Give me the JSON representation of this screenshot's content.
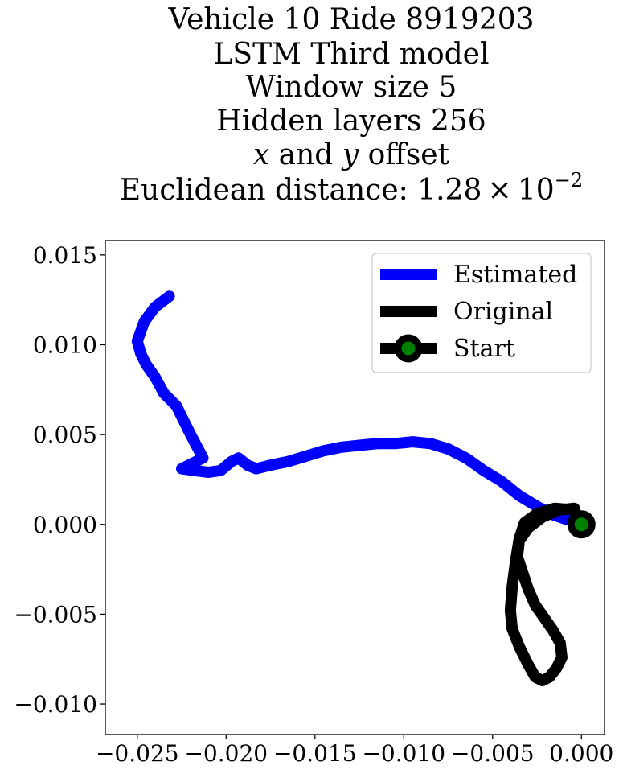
{
  "chart_data": {
    "type": "line",
    "title_lines": [
      "Vehicle 10 Ride 8919203",
      "LSTM Third model",
      "Window size 5",
      "Hidden layers 256",
      "x and y offset",
      "Euclidean distance: 1.28 × 10−2"
    ],
    "title": {
      "line5": {
        "x_var": "x",
        "mid": " and ",
        "y_var": "y",
        "tail": " offset"
      },
      "line6": {
        "prefix": "Euclidean distance: 1.28 × 10",
        "exponent": "−2"
      }
    },
    "xlim": [
      -0.0268,
      0.0013
    ],
    "ylim": [
      -0.0117,
      0.0158
    ],
    "xticks": [
      -0.025,
      -0.02,
      -0.015,
      -0.01,
      -0.005,
      0.0
    ],
    "xtick_labels": [
      "−0.025",
      "−0.020",
      "−0.015",
      "−0.010",
      "−0.005",
      "0.000"
    ],
    "yticks": [
      0.015,
      0.01,
      0.005,
      0.0,
      -0.005,
      -0.01
    ],
    "ytick_labels": [
      "0.015",
      "0.010",
      "0.005",
      "0.000",
      "−0.005",
      "−0.010"
    ],
    "grid": false,
    "legend_position": "top-right",
    "legend": [
      "Estimated",
      "Original",
      "Start"
    ],
    "series": [
      {
        "name": "Estimated",
        "color": "#0000ff",
        "x": [
          0.0,
          -0.0015,
          -0.0025,
          -0.0035,
          -0.0045,
          -0.0055,
          -0.0065,
          -0.0075,
          -0.0085,
          -0.0095,
          -0.0105,
          -0.0115,
          -0.0125,
          -0.0135,
          -0.0145,
          -0.0155,
          -0.0165,
          -0.0175,
          -0.0183,
          -0.0188,
          -0.0193,
          -0.0197,
          -0.0203,
          -0.021,
          -0.0218,
          -0.0225,
          -0.0213,
          -0.022,
          -0.0228,
          -0.0235,
          -0.024,
          -0.0245,
          -0.0248,
          -0.025,
          -0.0246,
          -0.024,
          -0.0232
        ],
        "y": [
          0.0,
          0.0005,
          0.001,
          0.0016,
          0.0024,
          0.003,
          0.0037,
          0.0042,
          0.0045,
          0.0046,
          0.0045,
          0.0045,
          0.0044,
          0.0043,
          0.0041,
          0.0038,
          0.0035,
          0.0033,
          0.0031,
          0.0033,
          0.0037,
          0.0035,
          0.003,
          0.0029,
          0.003,
          0.0031,
          0.0037,
          0.005,
          0.0066,
          0.0073,
          0.0082,
          0.0089,
          0.0095,
          0.0102,
          0.0113,
          0.0121,
          0.0127
        ]
      },
      {
        "name": "Original",
        "color": "#000000",
        "x": [
          0.0,
          -0.0004,
          -0.0015,
          -0.0025,
          -0.0032,
          -0.0035,
          -0.0037,
          -0.0039,
          -0.004,
          -0.0039,
          -0.0035,
          -0.003,
          -0.0026,
          -0.0022,
          -0.0018,
          -0.0014,
          -0.0011,
          -0.0012,
          -0.0016,
          -0.0021,
          -0.0026,
          -0.003,
          -0.0033,
          -0.0036,
          -0.0035,
          -0.003,
          -0.0022,
          -0.0013,
          -0.0004
        ],
        "y": [
          0.0,
          0.0008,
          0.0009,
          0.0006,
          0.0001,
          -0.0008,
          -0.002,
          -0.0035,
          -0.0048,
          -0.0058,
          -0.0068,
          -0.0078,
          -0.0085,
          -0.0087,
          -0.0085,
          -0.008,
          -0.0074,
          -0.0066,
          -0.0059,
          -0.0052,
          -0.0045,
          -0.0036,
          -0.0027,
          -0.0018,
          -0.0009,
          -0.0002,
          0.0004,
          0.0008,
          0.0009
        ]
      }
    ],
    "start_point": {
      "name": "Start",
      "x": 0.0,
      "y": 0.0,
      "color": "#008000",
      "edge_color": "#000000"
    }
  }
}
